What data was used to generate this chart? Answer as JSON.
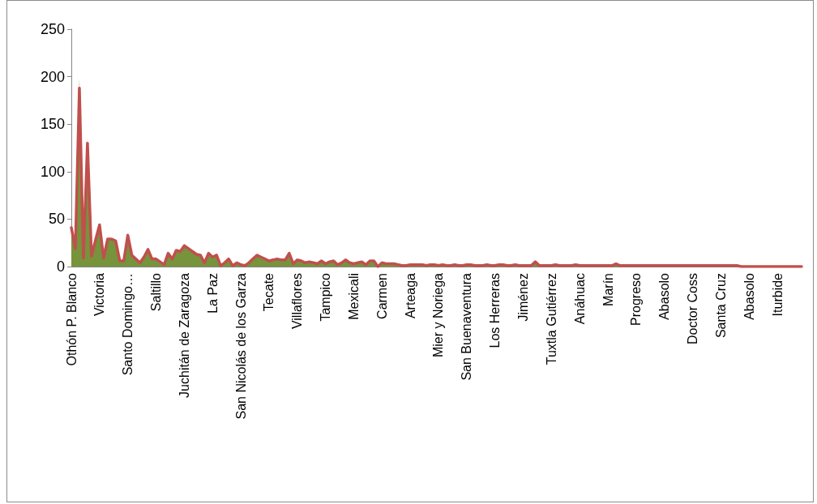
{
  "chart_data": {
    "type": "line",
    "marker": "none",
    "categories": [
      "Othón P. Blanco",
      null,
      null,
      null,
      null,
      null,
      null,
      "Victoria",
      null,
      null,
      null,
      null,
      null,
      null,
      "Santo Domingo…",
      null,
      null,
      null,
      null,
      null,
      null,
      "Saltillo",
      null,
      null,
      null,
      null,
      null,
      null,
      "Juchitán de Zaragoza",
      null,
      null,
      null,
      null,
      null,
      null,
      "La Paz",
      null,
      null,
      null,
      null,
      null,
      null,
      "San Nicolás de los Garza",
      null,
      null,
      null,
      null,
      null,
      null,
      "Tecate",
      null,
      null,
      null,
      null,
      null,
      null,
      "Villaflores",
      null,
      null,
      null,
      null,
      null,
      null,
      "Tampico",
      null,
      null,
      null,
      null,
      null,
      null,
      "Mexicali",
      null,
      null,
      null,
      null,
      null,
      null,
      "Carmen",
      null,
      null,
      null,
      null,
      null,
      null,
      "Arteaga",
      null,
      null,
      null,
      null,
      null,
      null,
      "Mier y Noriega",
      null,
      null,
      null,
      null,
      null,
      null,
      "San Buenaventura",
      null,
      null,
      null,
      null,
      null,
      null,
      "Los Herreras",
      null,
      null,
      null,
      null,
      null,
      null,
      "Jiménez",
      null,
      null,
      null,
      null,
      null,
      null,
      "Tuxtla Gutiérrez",
      null,
      null,
      null,
      null,
      null,
      null,
      "Anáhuac",
      null,
      null,
      null,
      null,
      null,
      null,
      "Marín",
      null,
      null,
      null,
      null,
      null,
      null,
      "Progreso",
      null,
      null,
      null,
      null,
      null,
      null,
      "Abasolo",
      null,
      null,
      null,
      null,
      null,
      null,
      "Doctor Coss",
      null,
      null,
      null,
      null,
      null,
      null,
      "Santa Cruz",
      null,
      null,
      null,
      null,
      null,
      null,
      "Abasolo",
      null,
      null,
      null,
      null,
      null,
      null,
      "Iturbide",
      null,
      null,
      null,
      null,
      null,
      null
    ],
    "series": [
      {
        "type": "area",
        "color": "#77933c",
        "values": [
          41,
          19,
          198,
          9,
          134,
          11,
          28,
          44,
          9,
          29,
          29,
          27,
          6,
          6,
          33,
          12,
          8,
          4,
          10,
          18,
          8,
          8,
          5,
          2,
          14,
          8,
          17,
          16,
          22,
          19,
          16,
          13,
          12,
          4,
          14,
          10,
          12,
          1,
          4,
          8,
          1,
          4,
          2,
          1,
          4,
          8,
          12,
          10,
          8,
          6,
          7,
          8,
          7,
          7,
          14,
          3,
          7,
          6,
          4,
          5,
          4,
          3,
          6,
          3,
          5,
          6,
          2,
          4,
          7,
          4,
          3,
          4,
          5,
          2,
          6,
          6,
          0,
          4,
          3,
          3,
          3,
          2,
          1,
          1,
          2,
          2,
          2,
          2,
          1,
          2,
          2,
          1,
          2,
          1,
          1,
          2,
          1,
          1,
          2,
          2,
          1,
          1,
          1,
          2,
          1,
          1,
          2,
          2,
          1,
          1,
          2,
          1,
          1,
          1,
          1,
          5,
          1,
          1,
          1,
          1,
          2,
          1,
          1,
          1,
          1,
          2,
          1,
          1,
          1,
          1,
          1,
          1,
          1,
          1,
          1,
          3,
          1,
          1,
          1,
          1,
          1,
          1,
          1,
          1,
          1,
          1,
          1,
          1,
          1,
          1,
          1,
          1,
          1,
          1,
          1,
          1,
          1,
          1,
          1,
          1,
          1,
          1,
          1,
          1,
          1,
          1,
          0,
          0,
          0,
          0,
          0,
          0,
          0,
          0,
          0,
          0,
          0,
          0,
          0,
          0,
          0,
          0
        ]
      },
      {
        "color": "#c0504d",
        "values": [
          41,
          19,
          188,
          9,
          130,
          11,
          28,
          44,
          9,
          29,
          29,
          27,
          6,
          6,
          33,
          12,
          8,
          4,
          10,
          18,
          8,
          8,
          5,
          2,
          14,
          8,
          17,
          16,
          22,
          19,
          16,
          13,
          12,
          4,
          14,
          10,
          12,
          1,
          4,
          8,
          1,
          4,
          2,
          1,
          4,
          8,
          12,
          10,
          8,
          6,
          7,
          8,
          7,
          7,
          14,
          3,
          7,
          6,
          4,
          5,
          4,
          3,
          6,
          3,
          5,
          6,
          2,
          4,
          7,
          4,
          3,
          4,
          5,
          2,
          6,
          6,
          0,
          4,
          3,
          3,
          3,
          2,
          1,
          1,
          2,
          2,
          2,
          2,
          1,
          2,
          2,
          1,
          2,
          1,
          1,
          2,
          1,
          1,
          2,
          2,
          1,
          1,
          1,
          2,
          1,
          1,
          2,
          2,
          1,
          1,
          2,
          1,
          1,
          1,
          1,
          5,
          1,
          1,
          1,
          1,
          2,
          1,
          1,
          1,
          1,
          2,
          1,
          1,
          1,
          1,
          1,
          1,
          1,
          1,
          1,
          3,
          1,
          1,
          1,
          1,
          1,
          1,
          1,
          1,
          1,
          1,
          1,
          1,
          1,
          1,
          1,
          1,
          1,
          1,
          1,
          1,
          1,
          1,
          1,
          1,
          1,
          1,
          1,
          1,
          1,
          1,
          0,
          0,
          0,
          0,
          0,
          0,
          0,
          0,
          0,
          0,
          0,
          0,
          0,
          0,
          0,
          0
        ]
      }
    ],
    "ylim": [
      0,
      250
    ],
    "yticks": [
      0,
      50,
      100,
      150,
      200,
      250
    ]
  }
}
